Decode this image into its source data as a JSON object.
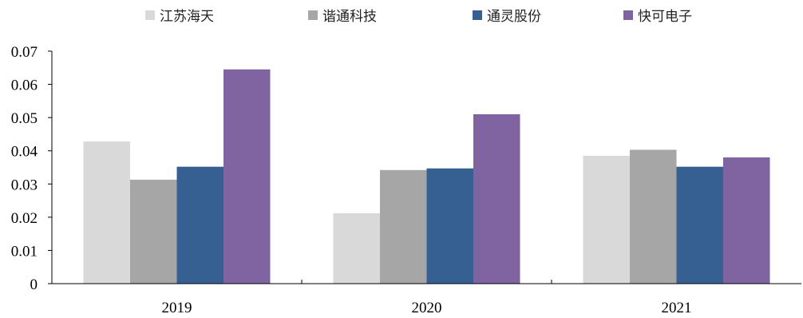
{
  "chart_data": {
    "type": "bar",
    "categories": [
      "2019",
      "2020",
      "2021"
    ],
    "series": [
      {
        "name": "江苏海天",
        "color": "#d9d9d9",
        "values": [
          0.0428,
          0.0212,
          0.0385
        ]
      },
      {
        "name": "谐通科技",
        "color": "#a6a6a6",
        "values": [
          0.0313,
          0.0342,
          0.0403
        ]
      },
      {
        "name": "通灵股份",
        "color": "#376092",
        "values": [
          0.0352,
          0.0347,
          0.0352
        ]
      },
      {
        "name": "快可电子",
        "color": "#8064a2",
        "values": [
          0.0645,
          0.051,
          0.038
        ]
      }
    ],
    "yticks": [
      "0",
      "0.01",
      "0.02",
      "0.03",
      "0.04",
      "0.05",
      "0.06",
      "0.07"
    ],
    "ylim": [
      0,
      0.07
    ],
    "legend_position": "top",
    "grid": false
  }
}
